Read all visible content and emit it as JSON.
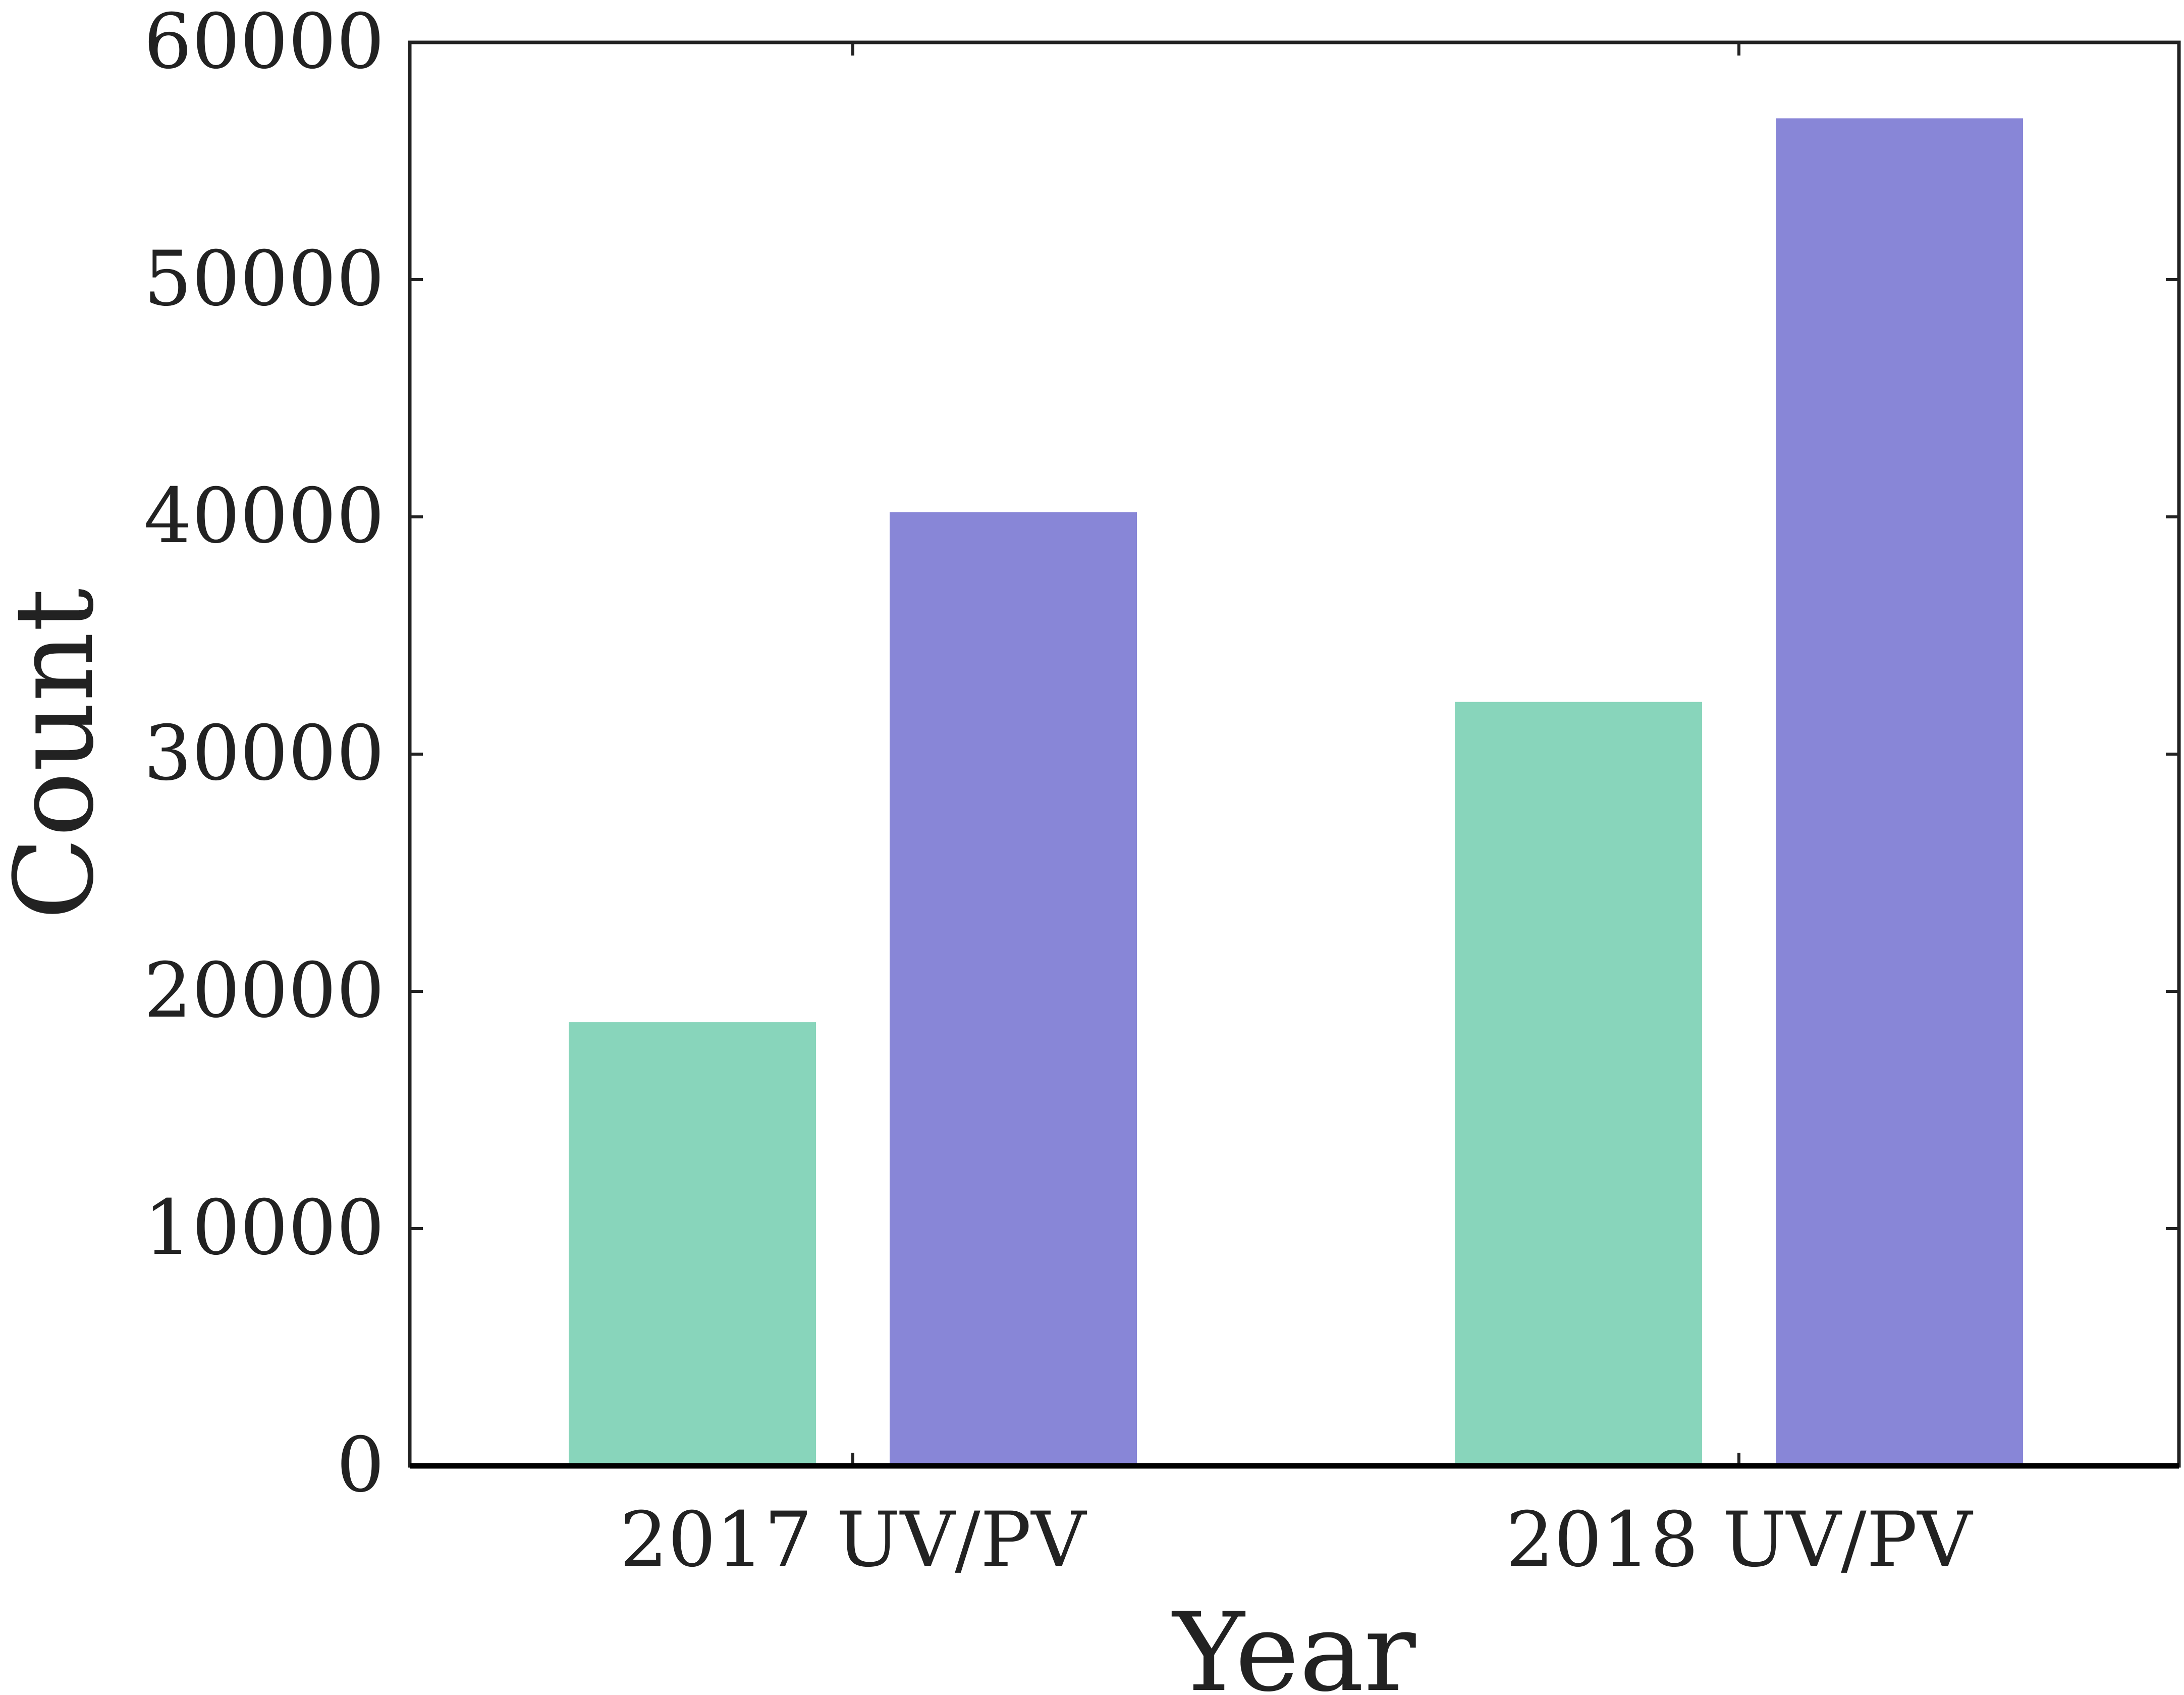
{
  "chart_data": {
    "type": "bar",
    "title": "",
    "xlabel": "Year",
    "ylabel": "Count",
    "categories": [
      "2017 UV/PV",
      "2018 UV/PV"
    ],
    "series": [
      {
        "values": [
          18700,
          32200
        ],
        "color": "#88d5bb"
      },
      {
        "values": [
          40200,
          56800
        ],
        "color": "#8886d7"
      }
    ],
    "ylim": [
      0,
      60000
    ],
    "yticks": [
      0,
      10000,
      20000,
      30000,
      40000,
      50000,
      60000
    ],
    "grid": false,
    "legend": "none"
  }
}
